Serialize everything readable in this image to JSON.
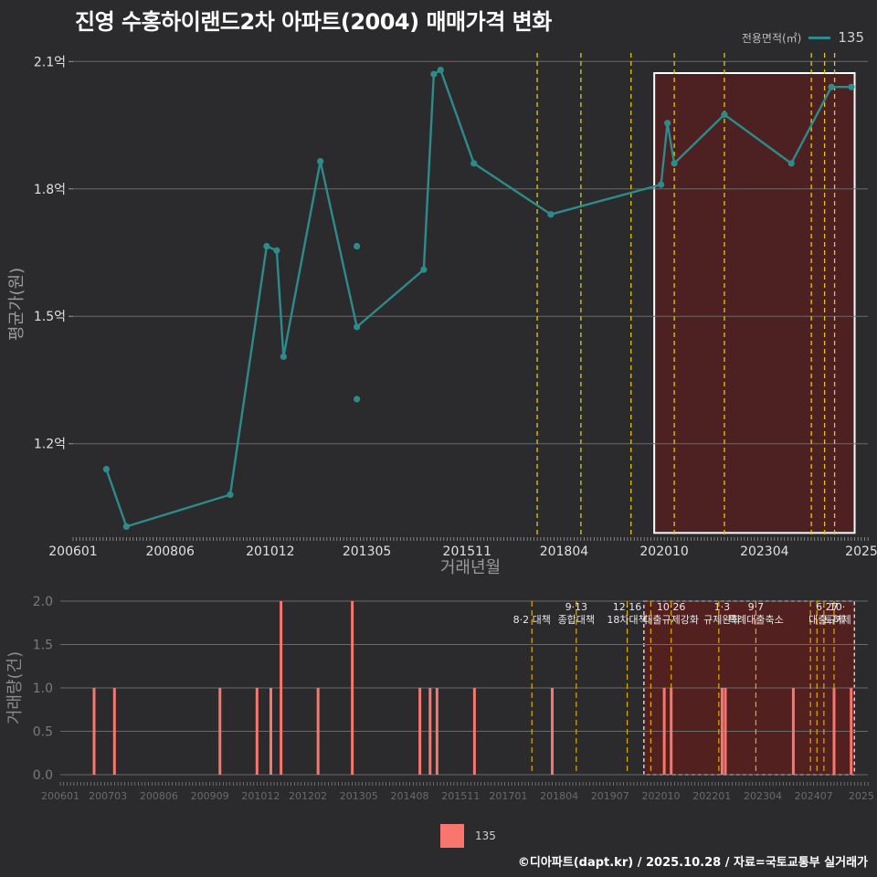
{
  "title": "진영 수홍하이랜드2차 아파트(2004) 매매가격 변화",
  "caption": "©디아파트(dapt.kr) / 2025.10.28 / 자료=국토교통부 실거래가",
  "legend_top": {
    "title": "전용면적(㎡)",
    "label": "135"
  },
  "legend_bottom": {
    "label": "135"
  },
  "colors": {
    "line": "#2e8b8b",
    "bar": "#f8766d",
    "policy": "#e6c619",
    "highlight": "#5a1e1e"
  },
  "chart_data": [
    {
      "type": "line",
      "title": "진영 수홍하이랜드2차 아파트(2004) 매매가격 변화",
      "xlabel": "거래년월",
      "ylabel": "평균가(원)",
      "xlim": [
        2006.0,
        2025.83
      ],
      "ylim": [
        0.98,
        2.12
      ],
      "y_ticks": [
        1.2,
        1.5,
        1.8,
        2.1
      ],
      "y_tick_labels": [
        "1.2억",
        "1.5억",
        "1.8억",
        "2.1억"
      ],
      "x_ticks": [
        2006.0,
        2008.42,
        2010.92,
        2013.33,
        2015.83,
        2018.25,
        2020.75,
        2023.25,
        2025.67
      ],
      "x_tick_labels": [
        "200601",
        "200806",
        "201012",
        "201305",
        "201511",
        "201804",
        "202010",
        "202304",
        "2025"
      ],
      "series": [
        {
          "name": "135",
          "x": [
            2006.83,
            2007.33,
            2009.92,
            2010.83,
            2011.08,
            2011.25,
            2012.17,
            2013.08,
            2014.75,
            2015.0,
            2015.17,
            2016.0,
            2017.92,
            2020.67,
            2020.83,
            2021.0,
            2022.25,
            2023.92,
            2024.92,
            2025.42
          ],
          "y": [
            1.14,
            1.005,
            1.08,
            1.665,
            1.655,
            1.405,
            1.865,
            1.475,
            1.61,
            2.07,
            2.08,
            1.86,
            1.74,
            1.81,
            1.955,
            1.86,
            1.975,
            1.86,
            2.04,
            2.04
          ]
        }
      ],
      "extra_points": [
        {
          "x": 2013.08,
          "y": 1.665
        },
        {
          "x": 2013.08,
          "y": 1.305
        }
      ],
      "policy_lines": [
        2017.58,
        2018.67,
        2019.92,
        2021.0,
        2022.25,
        2024.42,
        2024.75,
        2025.0
      ],
      "highlight_range": [
        2020.5,
        2025.5
      ]
    },
    {
      "type": "bar",
      "ylabel": "거래량(건)",
      "xlim": [
        2006.0,
        2025.83
      ],
      "ylim": [
        0,
        2.0
      ],
      "y_ticks": [
        0.0,
        0.5,
        1.0,
        1.5,
        2.0
      ],
      "y_tick_labels": [
        "0.0",
        "0.5",
        "1.0",
        "1.5",
        "2.0"
      ],
      "x_ticks": [
        2006.0,
        2007.17,
        2008.42,
        2009.67,
        2010.92,
        2012.08,
        2013.33,
        2014.58,
        2015.83,
        2017.0,
        2018.25,
        2019.5,
        2020.75,
        2022.0,
        2023.25,
        2024.5,
        2025.67
      ],
      "x_tick_labels": [
        "200601",
        "200703",
        "200806",
        "200909",
        "201012",
        "201202",
        "201305",
        "201408",
        "201511",
        "201701",
        "201804",
        "201907",
        "202010",
        "202201",
        "202304",
        "202407",
        "2025"
      ],
      "series": [
        {
          "name": "135",
          "x": [
            2006.83,
            2007.33,
            2009.92,
            2010.83,
            2011.17,
            2011.42,
            2012.33,
            2013.17,
            2014.83,
            2015.08,
            2015.25,
            2016.17,
            2018.08,
            2020.83,
            2021.0,
            2022.25,
            2022.33,
            2024.0,
            2025.0,
            2025.42
          ],
          "values": [
            1,
            1,
            1,
            1,
            1,
            2,
            1,
            2,
            1,
            1,
            1,
            1,
            1,
            1,
            1,
            1,
            1,
            1,
            1,
            1
          ]
        }
      ],
      "policy_lines": [
        2017.58,
        2018.67,
        2019.92,
        2020.5,
        2021.0,
        2022.17,
        2023.08,
        2024.42,
        2024.58,
        2024.75,
        2025.0
      ],
      "highlight_range": [
        2020.33,
        2025.5
      ],
      "annotations": [
        {
          "x": 2017.58,
          "lines": [
            "8·2 대책"
          ]
        },
        {
          "x": 2018.67,
          "lines": [
            "9·13",
            "종합대책"
          ]
        },
        {
          "x": 2019.92,
          "lines": [
            "12·16",
            "18차대책"
          ]
        },
        {
          "x": 2021.0,
          "lines": [
            "10·26",
            "대출규제강화"
          ]
        },
        {
          "x": 2022.25,
          "lines": [
            "1·3",
            "규제완화"
          ]
        },
        {
          "x": 2023.08,
          "lines": [
            "9·7",
            "특례대출축소"
          ]
        },
        {
          "x": 2024.83,
          "lines": [
            "6·27",
            "대출규제"
          ]
        },
        {
          "x": 2025.08,
          "lines": [
            "10·",
            "토허제"
          ]
        }
      ]
    }
  ]
}
